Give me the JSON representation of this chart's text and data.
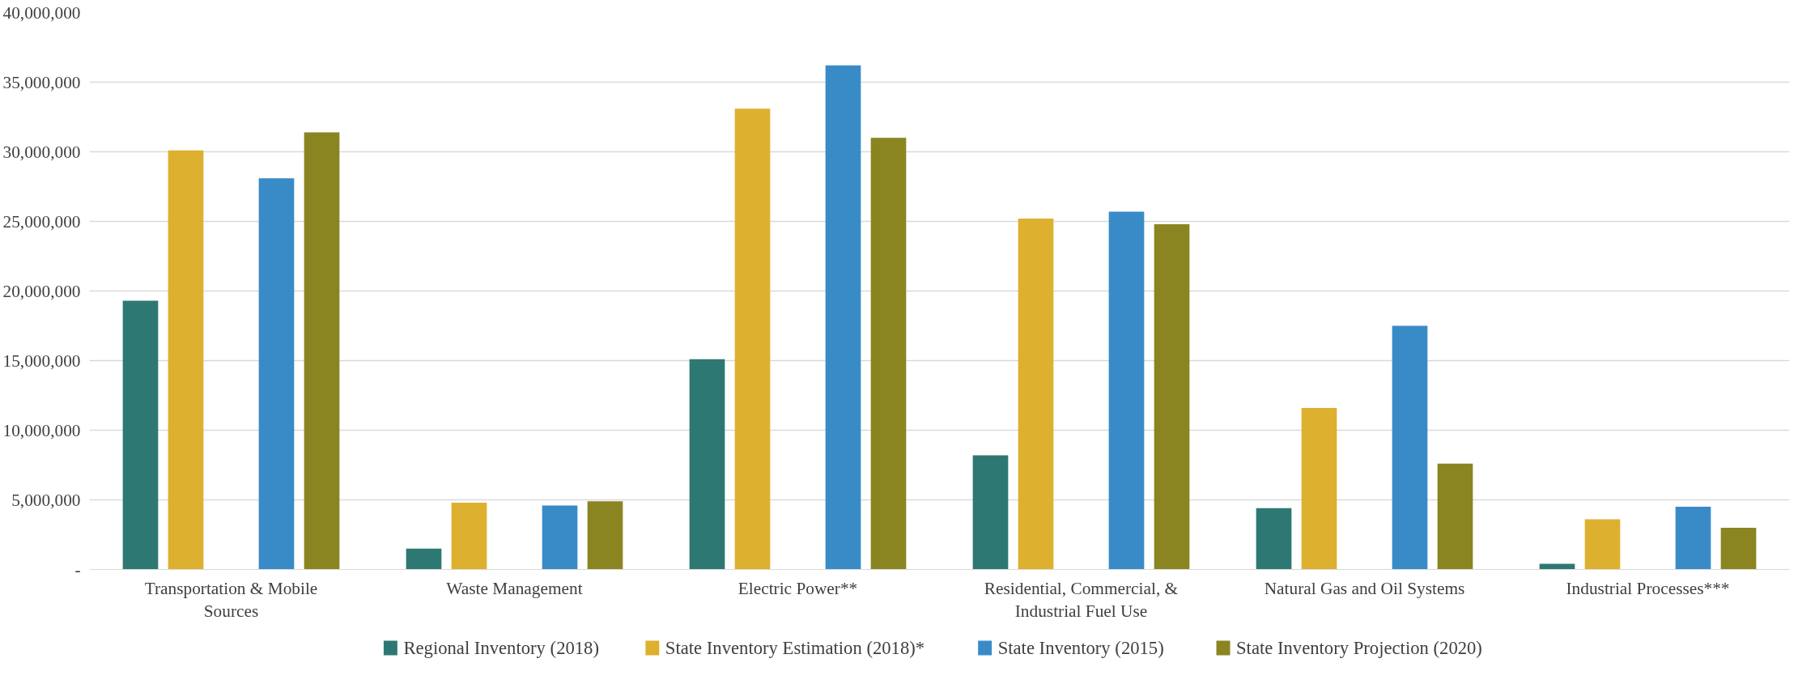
{
  "chart_data": {
    "type": "bar",
    "categories": [
      "Transportation & Mobile Sources",
      "Waste Management",
      "Electric Power**",
      "Residential, Commercial, & Industrial Fuel Use",
      "Natural Gas and Oil Systems",
      "Industrial Processes***"
    ],
    "series": [
      {
        "name": "Regional Inventory (2018)",
        "color": "#2e7873",
        "values": [
          19300000,
          1500000,
          15100000,
          8200000,
          4400000,
          400000
        ]
      },
      {
        "name": "State Inventory Estimation (2018)*",
        "color": "#deb030",
        "values": [
          30100000,
          4800000,
          33100000,
          25200000,
          11600000,
          3600000
        ]
      },
      {
        "name": "State Inventory (2015)",
        "color": "#398bc8",
        "values": [
          28100000,
          4600000,
          36200000,
          25700000,
          17500000,
          4500000
        ]
      },
      {
        "name": "State Inventory Projection (2020)",
        "color": "#8a8521",
        "values": [
          31400000,
          4900000,
          31000000,
          24800000,
          7600000,
          3000000
        ]
      }
    ],
    "ylim": [
      0,
      40000000
    ],
    "yticks": [
      {
        "value": 0,
        "label": "-"
      },
      {
        "value": 5000000,
        "label": "5,000,000"
      },
      {
        "value": 10000000,
        "label": "10,000,000"
      },
      {
        "value": 15000000,
        "label": "15,000,000"
      },
      {
        "value": 20000000,
        "label": "20,000,000"
      },
      {
        "value": 25000000,
        "label": "25,000,000"
      },
      {
        "value": 30000000,
        "label": "30,000,000"
      },
      {
        "value": 35000000,
        "label": "35,000,000"
      },
      {
        "value": 40000000,
        "label": "40,000,000"
      }
    ],
    "grid": "y",
    "legend": "bottom"
  }
}
